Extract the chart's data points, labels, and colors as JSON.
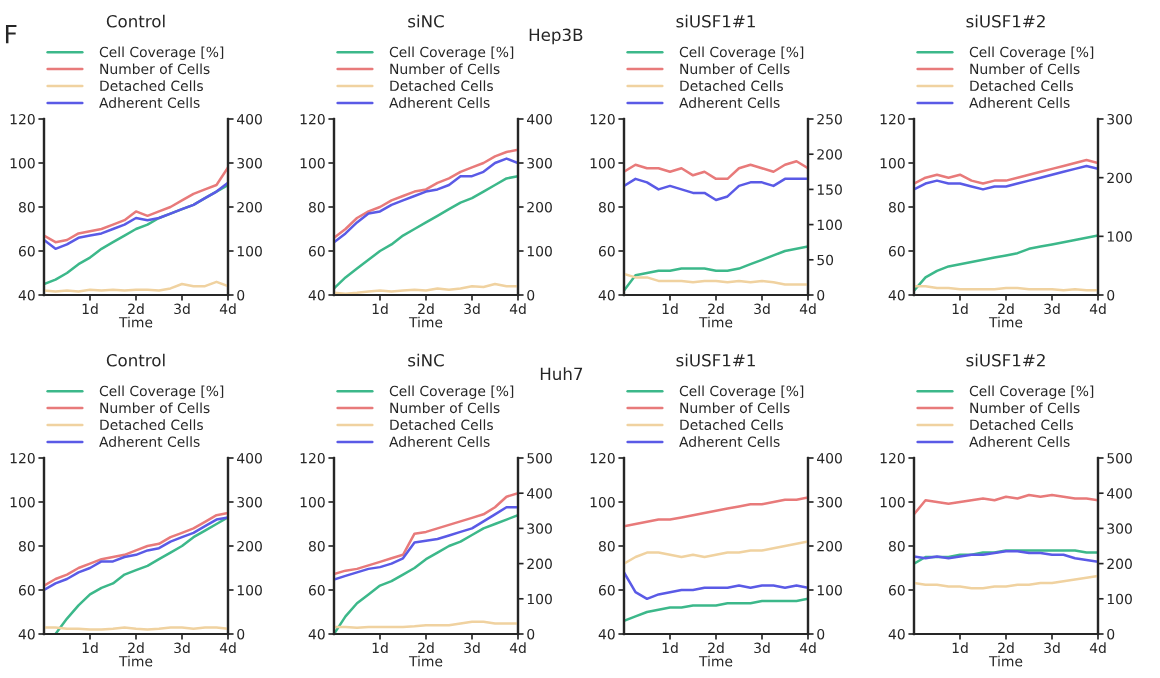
{
  "chart_data": [
    {
      "type": "line",
      "title": "Control",
      "xlabel": "Time",
      "annotations": [
        "F"
      ],
      "legend": "top",
      "x": [
        0,
        0.25,
        0.5,
        0.75,
        1,
        1.25,
        1.5,
        1.75,
        2,
        2.25,
        2.5,
        2.75,
        3,
        3.25,
        3.5,
        3.75,
        4
      ],
      "xlim": [
        0,
        4
      ],
      "xticks": [
        {
          "value": 1,
          "label": "1d"
        },
        {
          "value": 2,
          "label": "2d"
        },
        {
          "value": 3,
          "label": "3d"
        },
        {
          "value": 4,
          "label": "4d"
        }
      ],
      "ylim": [
        40,
        120
      ],
      "yticks": [
        40,
        60,
        80,
        100,
        120
      ],
      "y2lim": [
        0,
        400
      ],
      "y2ticks": [
        0,
        100,
        200,
        300,
        400
      ],
      "series": [
        {
          "name": "Cell Coverage [%]",
          "color": "#3cb88a",
          "values": [
            45,
            47,
            50,
            54,
            57,
            61,
            64,
            67,
            70,
            72,
            75,
            77,
            79,
            81,
            84,
            87,
            90
          ]
        },
        {
          "name": "Number of Cells",
          "color": "#e87a7a",
          "axis": "y2",
          "values": [
            135,
            120,
            125,
            140,
            145,
            150,
            160,
            170,
            190,
            180,
            190,
            200,
            215,
            230,
            240,
            250,
            290
          ]
        },
        {
          "name": "Detached Cells",
          "color": "#f0d2a0",
          "axis": "y2",
          "values": [
            10,
            8,
            10,
            8,
            12,
            10,
            12,
            10,
            12,
            12,
            10,
            15,
            25,
            20,
            20,
            30,
            20
          ]
        },
        {
          "name": "Adherent Cells",
          "color": "#5a5ae6",
          "axis": "y2",
          "values": [
            125,
            105,
            115,
            130,
            135,
            140,
            150,
            160,
            175,
            170,
            175,
            185,
            195,
            205,
            220,
            235,
            255
          ]
        }
      ]
    },
    {
      "type": "line",
      "title": "siNC",
      "xlabel": "Time",
      "legend": "top",
      "x": [
        0,
        0.25,
        0.5,
        0.75,
        1,
        1.25,
        1.5,
        1.75,
        2,
        2.25,
        2.5,
        2.75,
        3,
        3.25,
        3.5,
        3.75,
        4
      ],
      "xlim": [
        0,
        4
      ],
      "xticks": [
        {
          "value": 1,
          "label": "1d"
        },
        {
          "value": 2,
          "label": "2d"
        },
        {
          "value": 3,
          "label": "3d"
        },
        {
          "value": 4,
          "label": "4d"
        }
      ],
      "ylim": [
        40,
        120
      ],
      "yticks": [
        40,
        60,
        80,
        100,
        120
      ],
      "y2lim": [
        0,
        400
      ],
      "y2ticks": [
        0,
        100,
        200,
        300,
        400
      ],
      "series": [
        {
          "name": "Cell Coverage [%]",
          "color": "#3cb88a",
          "values": [
            43,
            48,
            52,
            56,
            60,
            63,
            67,
            70,
            73,
            76,
            79,
            82,
            84,
            87,
            90,
            93,
            94
          ]
        },
        {
          "name": "Number of Cells",
          "color": "#e87a7a",
          "axis": "y2",
          "values": [
            130,
            150,
            175,
            190,
            200,
            215,
            225,
            235,
            240,
            255,
            265,
            280,
            290,
            300,
            315,
            325,
            330
          ]
        },
        {
          "name": "Detached Cells",
          "color": "#f0d2a0",
          "axis": "y2",
          "values": [
            5,
            3,
            5,
            8,
            10,
            8,
            10,
            12,
            10,
            15,
            12,
            15,
            20,
            18,
            25,
            20,
            20
          ]
        },
        {
          "name": "Adherent Cells",
          "color": "#5a5ae6",
          "axis": "y2",
          "values": [
            120,
            140,
            165,
            185,
            190,
            205,
            215,
            225,
            235,
            240,
            250,
            270,
            270,
            280,
            300,
            310,
            300
          ]
        }
      ]
    },
    {
      "type": "line",
      "title": "siUSF1#1",
      "xlabel": "Time",
      "annotations": [
        "Hep3B"
      ],
      "legend": "top",
      "x": [
        0,
        0.25,
        0.5,
        0.75,
        1,
        1.25,
        1.5,
        1.75,
        2,
        2.25,
        2.5,
        2.75,
        3,
        3.25,
        3.5,
        3.75,
        4
      ],
      "xlim": [
        0,
        4
      ],
      "xticks": [
        {
          "value": 1,
          "label": "1d"
        },
        {
          "value": 2,
          "label": "2d"
        },
        {
          "value": 3,
          "label": "3d"
        },
        {
          "value": 4,
          "label": "4d"
        }
      ],
      "ylim": [
        40,
        120
      ],
      "yticks": [
        40,
        60,
        80,
        100,
        120
      ],
      "y2lim": [
        0,
        250
      ],
      "y2ticks": [
        0,
        50,
        100,
        150,
        200,
        250
      ],
      "series": [
        {
          "name": "Cell Coverage [%]",
          "color": "#3cb88a",
          "values": [
            42,
            49,
            50,
            51,
            51,
            52,
            52,
            52,
            51,
            51,
            52,
            54,
            56,
            58,
            60,
            61,
            62
          ]
        },
        {
          "name": "Number of Cells",
          "color": "#e87a7a",
          "axis": "y2",
          "values": [
            175,
            185,
            180,
            180,
            175,
            180,
            170,
            175,
            165,
            165,
            180,
            185,
            180,
            175,
            185,
            190,
            180
          ]
        },
        {
          "name": "Detached Cells",
          "color": "#f0d2a0",
          "axis": "y2",
          "values": [
            30,
            25,
            25,
            20,
            20,
            20,
            18,
            20,
            20,
            18,
            20,
            18,
            20,
            18,
            15,
            15,
            15
          ]
        },
        {
          "name": "Adherent Cells",
          "color": "#5a5ae6",
          "axis": "y2",
          "values": [
            155,
            165,
            160,
            150,
            155,
            150,
            145,
            145,
            135,
            140,
            155,
            160,
            160,
            155,
            165,
            165,
            165
          ]
        }
      ]
    },
    {
      "type": "line",
      "title": "siUSF1#2",
      "xlabel": "Time",
      "legend": "top",
      "x": [
        0,
        0.25,
        0.5,
        0.75,
        1,
        1.25,
        1.5,
        1.75,
        2,
        2.25,
        2.5,
        2.75,
        3,
        3.25,
        3.5,
        3.75,
        4
      ],
      "xlim": [
        0,
        4
      ],
      "xticks": [
        {
          "value": 1,
          "label": "1d"
        },
        {
          "value": 2,
          "label": "2d"
        },
        {
          "value": 3,
          "label": "3d"
        },
        {
          "value": 4,
          "label": "4d"
        }
      ],
      "ylim": [
        40,
        120
      ],
      "yticks": [
        40,
        60,
        80,
        100,
        120
      ],
      "y2lim": [
        0,
        300
      ],
      "y2ticks": [
        0,
        100,
        200,
        300
      ],
      "series": [
        {
          "name": "Cell Coverage [%]",
          "color": "#3cb88a",
          "values": [
            42,
            48,
            51,
            53,
            54,
            55,
            56,
            57,
            58,
            59,
            61,
            62,
            63,
            64,
            65,
            66,
            67
          ]
        },
        {
          "name": "Number of Cells",
          "color": "#e87a7a",
          "axis": "y2",
          "values": [
            190,
            200,
            205,
            200,
            205,
            195,
            190,
            195,
            195,
            200,
            205,
            210,
            215,
            220,
            225,
            230,
            225
          ]
        },
        {
          "name": "Detached Cells",
          "color": "#f0d2a0",
          "axis": "y2",
          "values": [
            15,
            15,
            12,
            12,
            10,
            10,
            10,
            10,
            12,
            12,
            10,
            10,
            10,
            8,
            10,
            8,
            8
          ]
        },
        {
          "name": "Adherent Cells",
          "color": "#5a5ae6",
          "axis": "y2",
          "values": [
            180,
            190,
            195,
            190,
            190,
            185,
            180,
            185,
            185,
            190,
            195,
            200,
            205,
            210,
            215,
            220,
            215
          ]
        }
      ]
    },
    {
      "type": "line",
      "title": "Control",
      "xlabel": "Time",
      "legend": "top",
      "x": [
        0,
        0.25,
        0.5,
        0.75,
        1,
        1.25,
        1.5,
        1.75,
        2,
        2.25,
        2.5,
        2.75,
        3,
        3.25,
        3.5,
        3.75,
        4
      ],
      "xlim": [
        0,
        4
      ],
      "xticks": [
        {
          "value": 1,
          "label": "1d"
        },
        {
          "value": 2,
          "label": "2d"
        },
        {
          "value": 3,
          "label": "3d"
        },
        {
          "value": 4,
          "label": "4d"
        }
      ],
      "ylim": [
        40,
        120
      ],
      "yticks": [
        40,
        60,
        80,
        100,
        120
      ],
      "y2lim": [
        0,
        400
      ],
      "y2ticks": [
        0,
        100,
        200,
        300,
        400
      ],
      "series": [
        {
          "name": "Cell Coverage [%]",
          "color": "#3cb88a",
          "values": [
            null,
            40,
            47,
            53,
            58,
            61,
            63,
            67,
            69,
            71,
            74,
            77,
            80,
            84,
            87,
            90,
            93
          ]
        },
        {
          "name": "Number of Cells",
          "color": "#e87a7a",
          "axis": "y2",
          "values": [
            110,
            125,
            135,
            150,
            160,
            170,
            175,
            180,
            190,
            200,
            205,
            220,
            230,
            240,
            255,
            270,
            275
          ]
        },
        {
          "name": "Detached Cells",
          "color": "#f0d2a0",
          "axis": "y2",
          "values": [
            15,
            15,
            12,
            12,
            10,
            10,
            12,
            15,
            12,
            10,
            12,
            15,
            15,
            12,
            15,
            15,
            12
          ]
        },
        {
          "name": "Adherent Cells",
          "color": "#5a5ae6",
          "axis": "y2",
          "values": [
            100,
            115,
            125,
            140,
            150,
            165,
            165,
            175,
            180,
            190,
            195,
            210,
            220,
            230,
            245,
            260,
            265
          ]
        }
      ]
    },
    {
      "type": "line",
      "title": "siNC",
      "xlabel": "Time",
      "legend": "top",
      "x": [
        0,
        0.25,
        0.5,
        0.75,
        1,
        1.25,
        1.5,
        1.75,
        2,
        2.25,
        2.5,
        2.75,
        3,
        3.25,
        3.5,
        3.75,
        4
      ],
      "xlim": [
        0,
        4
      ],
      "xticks": [
        {
          "value": 1,
          "label": "1d"
        },
        {
          "value": 2,
          "label": "2d"
        },
        {
          "value": 3,
          "label": "3d"
        },
        {
          "value": 4,
          "label": "4d"
        }
      ],
      "ylim": [
        40,
        120
      ],
      "yticks": [
        40,
        60,
        80,
        100,
        120
      ],
      "y2lim": [
        0,
        500
      ],
      "y2ticks": [
        0,
        100,
        200,
        300,
        400,
        500
      ],
      "series": [
        {
          "name": "Cell Coverage [%]",
          "color": "#3cb88a",
          "values": [
            40,
            48,
            54,
            58,
            62,
            64,
            67,
            70,
            74,
            77,
            80,
            82,
            85,
            88,
            90,
            92,
            94
          ]
        },
        {
          "name": "Number of Cells",
          "color": "#e87a7a",
          "axis": "y2",
          "values": [
            170,
            180,
            185,
            195,
            205,
            215,
            225,
            285,
            290,
            300,
            310,
            320,
            330,
            340,
            360,
            390,
            400
          ]
        },
        {
          "name": "Detached Cells",
          "color": "#f0d2a0",
          "axis": "y2",
          "values": [
            20,
            20,
            18,
            20,
            20,
            20,
            20,
            22,
            25,
            25,
            25,
            30,
            35,
            35,
            30,
            30,
            30
          ]
        },
        {
          "name": "Adherent Cells",
          "color": "#5a5ae6",
          "axis": "y2",
          "values": [
            155,
            165,
            175,
            185,
            190,
            200,
            215,
            260,
            265,
            270,
            280,
            290,
            300,
            320,
            340,
            360,
            360
          ]
        }
      ]
    },
    {
      "type": "line",
      "title": "siUSF1#1",
      "xlabel": "Time",
      "annotations": [
        "Huh7"
      ],
      "legend": "top",
      "x": [
        0,
        0.25,
        0.5,
        0.75,
        1,
        1.25,
        1.5,
        1.75,
        2,
        2.25,
        2.5,
        2.75,
        3,
        3.25,
        3.5,
        3.75,
        4
      ],
      "xlim": [
        0,
        4
      ],
      "xticks": [
        {
          "value": 1,
          "label": "1d"
        },
        {
          "value": 2,
          "label": "2d"
        },
        {
          "value": 3,
          "label": "3d"
        },
        {
          "value": 4,
          "label": "4d"
        }
      ],
      "ylim": [
        40,
        120
      ],
      "yticks": [
        40,
        60,
        80,
        100,
        120
      ],
      "y2lim": [
        0,
        400
      ],
      "y2ticks": [
        0,
        100,
        200,
        300,
        400
      ],
      "series": [
        {
          "name": "Cell Coverage [%]",
          "color": "#3cb88a",
          "values": [
            46,
            48,
            50,
            51,
            52,
            52,
            53,
            53,
            53,
            54,
            54,
            54,
            55,
            55,
            55,
            55,
            56
          ]
        },
        {
          "name": "Number of Cells",
          "color": "#e87a7a",
          "axis": "y2",
          "values": [
            245,
            250,
            255,
            260,
            260,
            265,
            270,
            275,
            280,
            285,
            290,
            295,
            295,
            300,
            305,
            305,
            310
          ]
        },
        {
          "name": "Detached Cells",
          "color": "#f0d2a0",
          "axis": "y2",
          "values": [
            160,
            175,
            185,
            185,
            180,
            175,
            180,
            175,
            180,
            185,
            185,
            190,
            190,
            195,
            200,
            205,
            210
          ]
        },
        {
          "name": "Adherent Cells",
          "color": "#5a5ae6",
          "axis": "y2",
          "values": [
            140,
            95,
            80,
            90,
            95,
            100,
            100,
            105,
            105,
            105,
            110,
            105,
            110,
            110,
            105,
            110,
            105
          ]
        }
      ]
    },
    {
      "type": "line",
      "title": "siUSF1#2",
      "xlabel": "Time",
      "legend": "top",
      "x": [
        0,
        0.25,
        0.5,
        0.75,
        1,
        1.25,
        1.5,
        1.75,
        2,
        2.25,
        2.5,
        2.75,
        3,
        3.25,
        3.5,
        3.75,
        4
      ],
      "xlim": [
        0,
        4
      ],
      "xticks": [
        {
          "value": 1,
          "label": "1d"
        },
        {
          "value": 2,
          "label": "2d"
        },
        {
          "value": 3,
          "label": "3d"
        },
        {
          "value": 4,
          "label": "4d"
        }
      ],
      "ylim": [
        40,
        120
      ],
      "yticks": [
        40,
        60,
        80,
        100,
        120
      ],
      "y2lim": [
        0,
        500
      ],
      "y2ticks": [
        0,
        100,
        200,
        300,
        400,
        500
      ],
      "series": [
        {
          "name": "Cell Coverage [%]",
          "color": "#3cb88a",
          "values": [
            72,
            75,
            75,
            75,
            76,
            76,
            77,
            77,
            78,
            78,
            78,
            78,
            78,
            78,
            78,
            77,
            77
          ]
        },
        {
          "name": "Number of Cells",
          "color": "#e87a7a",
          "axis": "y2",
          "values": [
            340,
            380,
            375,
            370,
            375,
            380,
            385,
            380,
            390,
            385,
            395,
            390,
            395,
            390,
            385,
            385,
            380
          ]
        },
        {
          "name": "Detached Cells",
          "color": "#f0d2a0",
          "axis": "y2",
          "values": [
            145,
            140,
            140,
            135,
            135,
            130,
            130,
            135,
            135,
            140,
            140,
            145,
            145,
            150,
            155,
            160,
            165
          ]
        },
        {
          "name": "Adherent Cells",
          "color": "#5a5ae6",
          "axis": "y2",
          "values": [
            220,
            215,
            220,
            215,
            220,
            225,
            225,
            230,
            235,
            235,
            230,
            230,
            225,
            225,
            215,
            210,
            205
          ]
        }
      ]
    }
  ]
}
